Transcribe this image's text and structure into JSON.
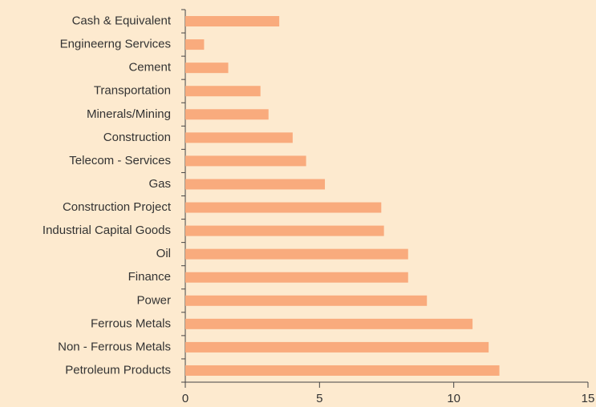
{
  "chart_data": {
    "type": "barh",
    "categories": [
      "Cash & Equivalent",
      "Engineerng Services",
      "Cement",
      "Transportation",
      "Minerals/Mining",
      "Construction",
      "Telecom - Services",
      "Gas",
      "Construction Project",
      "Industrial Capital Goods",
      "Oil",
      "Finance",
      "Power",
      "Ferrous Metals",
      "Non - Ferrous Metals",
      "Petroleum Products"
    ],
    "values": [
      3.5,
      0.7,
      1.6,
      2.8,
      3.1,
      4.0,
      4.5,
      5.2,
      7.3,
      7.4,
      8.3,
      8.3,
      9.0,
      10.7,
      11.3,
      11.7
    ],
    "color": "#f9ab7d",
    "xlim": [
      0,
      15
    ],
    "xticks": [
      0,
      5,
      10,
      15
    ]
  }
}
